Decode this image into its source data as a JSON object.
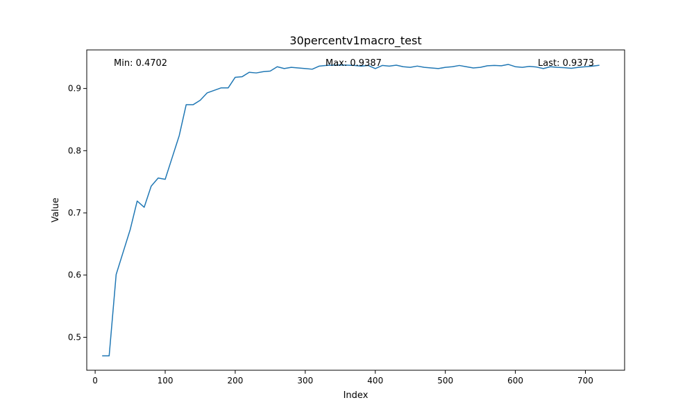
{
  "chart_data": {
    "type": "line",
    "title": "30percentv1macro_test",
    "xlabel": "Index",
    "ylabel": "Value",
    "xlim": [
      -12,
      756
    ],
    "ylim": [
      0.447,
      0.962
    ],
    "xticks": [
      0,
      100,
      200,
      300,
      400,
      500,
      600,
      700
    ],
    "yticks": [
      0.5,
      0.6,
      0.7,
      0.8,
      0.9
    ],
    "grid": false,
    "line_color": "#1f77b4",
    "annotations": {
      "min": "Min: 0.4702",
      "max": "Max: 0.9387",
      "last": "Last: 0.9373"
    },
    "series": [
      {
        "x": [
          10,
          20,
          30,
          40,
          50,
          60,
          70,
          80,
          90,
          100,
          110,
          120,
          130,
          140,
          150,
          160,
          170,
          180,
          190,
          200,
          210,
          220,
          230,
          240,
          250,
          260,
          270,
          280,
          290,
          300,
          310,
          320,
          330,
          340,
          350,
          360,
          370,
          380,
          390,
          400,
          410,
          420,
          430,
          440,
          450,
          460,
          470,
          480,
          490,
          500,
          510,
          520,
          530,
          540,
          550,
          560,
          570,
          580,
          590,
          600,
          610,
          620,
          630,
          640,
          650,
          660,
          670,
          680,
          690,
          700,
          710,
          720
        ],
        "y": [
          0.4702,
          0.4702,
          0.601,
          0.637,
          0.673,
          0.719,
          0.709,
          0.743,
          0.756,
          0.754,
          0.789,
          0.824,
          0.874,
          0.874,
          0.881,
          0.893,
          0.897,
          0.901,
          0.901,
          0.918,
          0.919,
          0.926,
          0.925,
          0.927,
          0.928,
          0.935,
          0.932,
          0.934,
          0.933,
          0.932,
          0.931,
          0.936,
          0.937,
          0.9375,
          0.9378,
          0.9375,
          0.937,
          0.936,
          0.937,
          0.932,
          0.937,
          0.936,
          0.9375,
          0.935,
          0.934,
          0.936,
          0.934,
          0.933,
          0.932,
          0.934,
          0.935,
          0.937,
          0.935,
          0.933,
          0.934,
          0.9365,
          0.937,
          0.9365,
          0.9387,
          0.935,
          0.934,
          0.9355,
          0.9345,
          0.932,
          0.935,
          0.934,
          0.9335,
          0.9325,
          0.934,
          0.935,
          0.936,
          0.9373
        ]
      }
    ]
  }
}
